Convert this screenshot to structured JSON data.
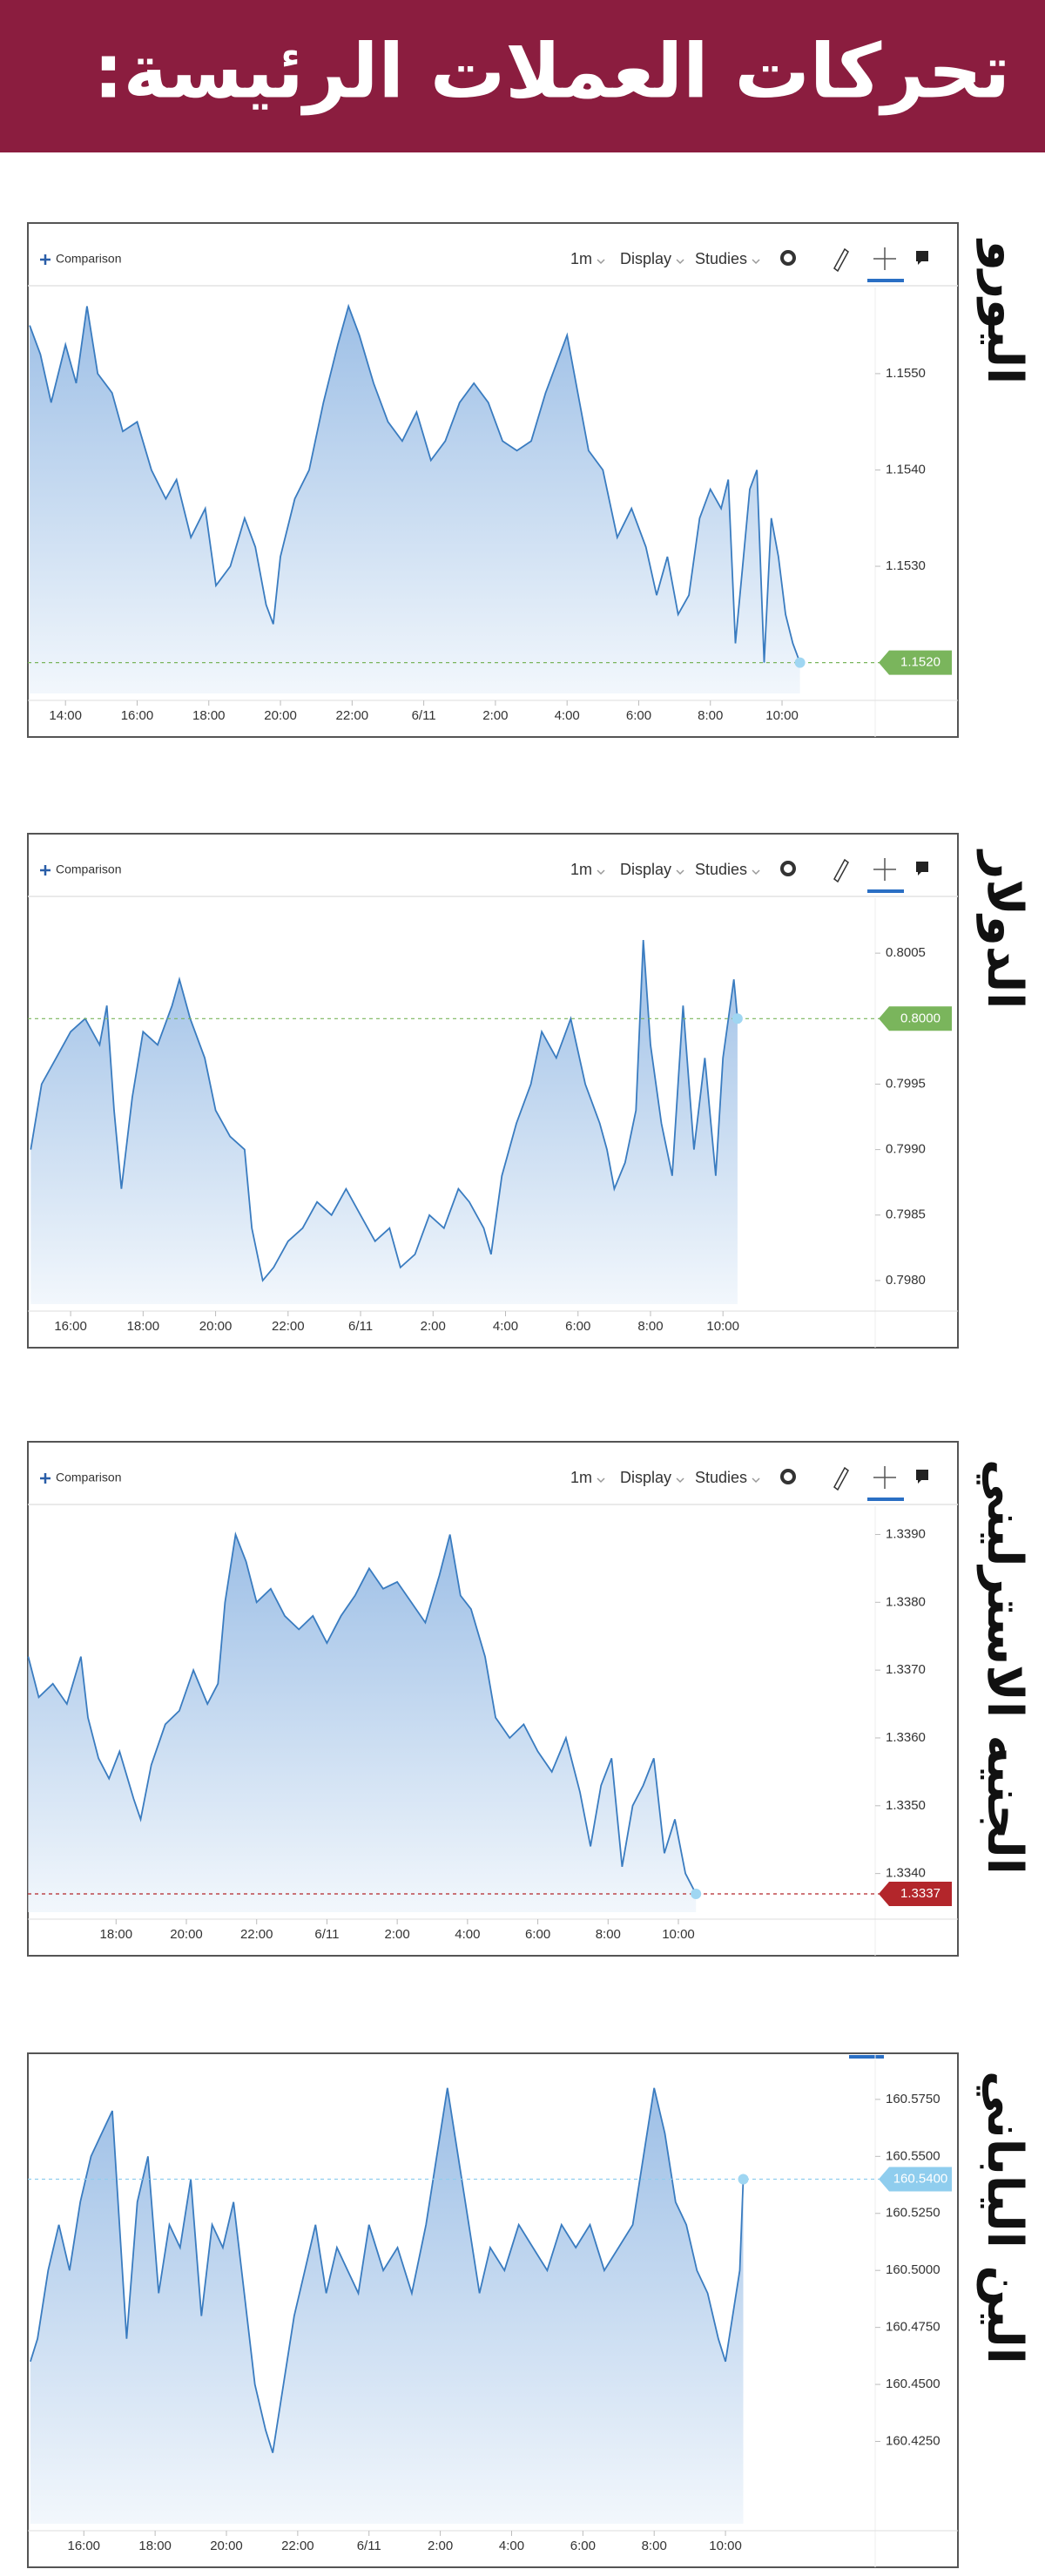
{
  "header": {
    "title": "تحركات العملات الرئيسة:"
  },
  "chart_data": [
    {
      "type": "area",
      "title": "اليورو",
      "toolbar": [
        "Comparison",
        "1m",
        "Display",
        "Studies"
      ],
      "color": "#3a7cc0",
      "tag_color": "#7ab55c",
      "x": [
        13.0,
        13.3,
        13.6,
        14.0,
        14.3,
        14.6,
        14.9,
        15.3,
        15.6,
        16.0,
        16.4,
        16.8,
        17.1,
        17.5,
        17.9,
        18.2,
        18.6,
        19.0,
        19.3,
        19.6,
        19.8,
        20.0,
        20.4,
        20.8,
        21.2,
        21.6,
        21.9,
        22.2,
        22.6,
        23.0,
        23.4,
        23.8,
        24.2,
        24.6,
        25.0,
        25.4,
        25.8,
        26.2,
        26.6,
        27.0,
        27.4,
        27.8,
        28.0,
        28.3,
        28.6,
        29.0,
        29.4,
        29.8,
        30.2,
        30.5,
        30.8,
        31.1,
        31.4,
        31.7,
        32.0,
        32.3,
        32.5,
        32.7,
        32.9,
        33.1,
        33.3,
        33.5,
        33.7,
        33.9,
        34.1,
        34.3,
        34.5
      ],
      "values": [
        1.1555,
        1.1552,
        1.1547,
        1.1553,
        1.1549,
        1.1557,
        1.155,
        1.1548,
        1.1544,
        1.1545,
        1.154,
        1.1537,
        1.1539,
        1.1533,
        1.1536,
        1.1528,
        1.153,
        1.1535,
        1.1532,
        1.1526,
        1.1524,
        1.1531,
        1.1537,
        1.154,
        1.1547,
        1.1553,
        1.1557,
        1.1554,
        1.1549,
        1.1545,
        1.1543,
        1.1546,
        1.1541,
        1.1543,
        1.1547,
        1.1549,
        1.1547,
        1.1543,
        1.1542,
        1.1543,
        1.1548,
        1.1552,
        1.1554,
        1.1548,
        1.1542,
        1.154,
        1.1533,
        1.1536,
        1.1532,
        1.1527,
        1.1531,
        1.1525,
        1.1527,
        1.1535,
        1.1538,
        1.1536,
        1.1539,
        1.1522,
        1.153,
        1.1538,
        1.154,
        1.152,
        1.1535,
        1.1531,
        1.1525,
        1.1522,
        1.152
      ],
      "last_value": {
        "value": 1.152,
        "label": "1.1520"
      },
      "xlim": [
        12.95,
        36.6
      ],
      "ylim": [
        1.15168,
        1.15584
      ],
      "xticks": [
        {
          "value": 14,
          "label": "14:00"
        },
        {
          "value": 16,
          "label": "16:00"
        },
        {
          "value": 18,
          "label": "18:00"
        },
        {
          "value": 20,
          "label": "20:00"
        },
        {
          "value": 22,
          "label": "22:00"
        },
        {
          "value": 24,
          "label": "6/11"
        },
        {
          "value": 26,
          "label": "2:00"
        },
        {
          "value": 28,
          "label": "4:00"
        },
        {
          "value": 30,
          "label": "6:00"
        },
        {
          "value": 32,
          "label": "8:00"
        },
        {
          "value": 34,
          "label": "10:00"
        }
      ],
      "yticks": [
        {
          "value": 1.155,
          "label": "1.1550"
        },
        {
          "value": 1.154,
          "label": "1.1540"
        },
        {
          "value": 1.153,
          "label": "1.1530"
        }
      ]
    },
    {
      "type": "area",
      "title": "الدولار",
      "toolbar": [
        "Comparison",
        "1m",
        "Display",
        "Studies"
      ],
      "color": "#3a7cc0",
      "tag_color": "#7ab55c",
      "x": [
        14.9,
        15.2,
        15.6,
        16.0,
        16.4,
        16.8,
        17.0,
        17.2,
        17.4,
        17.7,
        18.0,
        18.4,
        18.8,
        19.0,
        19.3,
        19.7,
        20.0,
        20.4,
        20.8,
        21.0,
        21.3,
        21.6,
        22.0,
        22.4,
        22.8,
        23.2,
        23.6,
        24.0,
        24.4,
        24.8,
        25.1,
        25.5,
        25.9,
        26.3,
        26.7,
        27.0,
        27.4,
        27.6,
        27.9,
        28.3,
        28.7,
        29.0,
        29.4,
        29.8,
        30.2,
        30.6,
        30.8,
        31.0,
        31.3,
        31.6,
        31.8,
        32.0,
        32.3,
        32.6,
        32.9,
        33.2,
        33.5,
        33.8,
        34.0,
        34.3,
        34.4
      ],
      "values": [
        0.799,
        0.7995,
        0.7997,
        0.7999,
        0.8,
        0.7998,
        0.8001,
        0.7993,
        0.7987,
        0.7994,
        0.7999,
        0.7998,
        0.8001,
        0.8003,
        0.8,
        0.7997,
        0.7993,
        0.7991,
        0.799,
        0.7984,
        0.798,
        0.7981,
        0.7983,
        0.7984,
        0.7986,
        0.7985,
        0.7987,
        0.7985,
        0.7983,
        0.7984,
        0.7981,
        0.7982,
        0.7985,
        0.7984,
        0.7987,
        0.7986,
        0.7984,
        0.7982,
        0.7988,
        0.7992,
        0.7995,
        0.7999,
        0.7997,
        0.8,
        0.7995,
        0.7992,
        0.799,
        0.7987,
        0.7989,
        0.7993,
        0.8006,
        0.7998,
        0.7992,
        0.7988,
        0.8001,
        0.799,
        0.7997,
        0.7988,
        0.7997,
        0.8003,
        0.8
      ],
      "last_value": {
        "value": 0.8,
        "label": "0.8000"
      },
      "xlim": [
        14.82,
        38.2
      ],
      "ylim": [
        0.79782,
        0.80088
      ],
      "xticks": [
        {
          "value": 16,
          "label": "16:00"
        },
        {
          "value": 18,
          "label": "18:00"
        },
        {
          "value": 20,
          "label": "20:00"
        },
        {
          "value": 22,
          "label": "22:00"
        },
        {
          "value": 24,
          "label": "6/11"
        },
        {
          "value": 26,
          "label": "2:00"
        },
        {
          "value": 28,
          "label": "4:00"
        },
        {
          "value": 30,
          "label": "6:00"
        },
        {
          "value": 32,
          "label": "8:00"
        },
        {
          "value": 34,
          "label": "10:00"
        }
      ],
      "yticks": [
        {
          "value": 0.8005,
          "label": "0.8005"
        },
        {
          "value": 0.7995,
          "label": "0.7995"
        },
        {
          "value": 0.799,
          "label": "0.7990"
        },
        {
          "value": 0.7985,
          "label": "0.7985"
        },
        {
          "value": 0.798,
          "label": "0.7980"
        }
      ]
    },
    {
      "type": "area",
      "title": "الجنيه الاسترليني",
      "toolbar": [
        "Comparison",
        "1m",
        "Display",
        "Studies"
      ],
      "color": "#3a7cc0",
      "tag_color": "#b3262b",
      "x": [
        15.5,
        15.8,
        16.2,
        16.6,
        17.0,
        17.2,
        17.5,
        17.8,
        18.1,
        18.5,
        18.7,
        19.0,
        19.4,
        19.8,
        20.2,
        20.6,
        20.9,
        21.1,
        21.4,
        21.7,
        22.0,
        22.4,
        22.8,
        23.2,
        23.6,
        24.0,
        24.4,
        24.8,
        25.2,
        25.6,
        26.0,
        26.4,
        26.8,
        27.2,
        27.5,
        27.8,
        28.1,
        28.5,
        28.8,
        29.2,
        29.6,
        30.0,
        30.4,
        30.8,
        31.2,
        31.5,
        31.8,
        32.1,
        32.4,
        32.7,
        33.0,
        33.3,
        33.6,
        33.9,
        34.2,
        34.5
      ],
      "values": [
        1.3372,
        1.3366,
        1.3368,
        1.3365,
        1.3372,
        1.3363,
        1.3357,
        1.3354,
        1.3358,
        1.3351,
        1.3348,
        1.3356,
        1.3362,
        1.3364,
        1.337,
        1.3365,
        1.3368,
        1.338,
        1.339,
        1.3386,
        1.338,
        1.3382,
        1.3378,
        1.3376,
        1.3378,
        1.3374,
        1.3378,
        1.3381,
        1.3385,
        1.3382,
        1.3383,
        1.338,
        1.3377,
        1.3384,
        1.339,
        1.3381,
        1.3379,
        1.3372,
        1.3363,
        1.336,
        1.3362,
        1.3358,
        1.3355,
        1.336,
        1.3352,
        1.3344,
        1.3353,
        1.3357,
        1.3341,
        1.335,
        1.3353,
        1.3357,
        1.3343,
        1.3348,
        1.334,
        1.3337
      ],
      "last_value": {
        "value": 1.3337,
        "label": "1.3337"
      },
      "xlim": [
        15.49,
        39.6
      ],
      "ylim": [
        1.33343,
        1.33934
      ],
      "xticks": [
        {
          "value": 18,
          "label": "18:00"
        },
        {
          "value": 20,
          "label": "20:00"
        },
        {
          "value": 22,
          "label": "22:00"
        },
        {
          "value": 24,
          "label": "6/11"
        },
        {
          "value": 26,
          "label": "2:00"
        },
        {
          "value": 28,
          "label": "4:00"
        },
        {
          "value": 30,
          "label": "6:00"
        },
        {
          "value": 32,
          "label": "8:00"
        },
        {
          "value": 34,
          "label": "10:00"
        }
      ],
      "yticks": [
        {
          "value": 1.339,
          "label": "1.3390"
        },
        {
          "value": 1.338,
          "label": "1.3380"
        },
        {
          "value": 1.337,
          "label": "1.3370"
        },
        {
          "value": 1.336,
          "label": "1.3360"
        },
        {
          "value": 1.335,
          "label": "1.3350"
        },
        {
          "value": 1.334,
          "label": "1.3340"
        }
      ]
    },
    {
      "type": "area",
      "title": "الين الياباني",
      "color": "#3a7cc0",
      "tag_color": "#8fcdee",
      "x": [
        14.5,
        14.7,
        15.0,
        15.3,
        15.6,
        15.9,
        16.2,
        16.5,
        16.8,
        17.0,
        17.2,
        17.5,
        17.8,
        18.1,
        18.4,
        18.7,
        19.0,
        19.3,
        19.6,
        19.9,
        20.2,
        20.5,
        20.8,
        21.1,
        21.3,
        21.6,
        21.9,
        22.2,
        22.5,
        22.8,
        23.1,
        23.4,
        23.7,
        24.0,
        24.4,
        24.8,
        25.2,
        25.6,
        25.9,
        26.2,
        26.5,
        26.8,
        27.1,
        27.4,
        27.8,
        28.2,
        28.6,
        29.0,
        29.4,
        29.8,
        30.2,
        30.6,
        31.0,
        31.4,
        31.7,
        32.0,
        32.3,
        32.6,
        32.9,
        33.2,
        33.5,
        33.8,
        34.0,
        34.2,
        34.4,
        34.5
      ],
      "values": [
        160.46,
        160.47,
        160.5,
        160.52,
        160.5,
        160.53,
        160.55,
        160.56,
        160.57,
        160.52,
        160.47,
        160.53,
        160.55,
        160.49,
        160.52,
        160.51,
        160.54,
        160.48,
        160.52,
        160.51,
        160.53,
        160.49,
        160.45,
        160.43,
        160.42,
        160.45,
        160.48,
        160.5,
        160.52,
        160.49,
        160.51,
        160.5,
        160.49,
        160.52,
        160.5,
        160.51,
        160.49,
        160.52,
        160.55,
        160.58,
        160.55,
        160.52,
        160.49,
        160.51,
        160.5,
        160.52,
        160.51,
        160.5,
        160.52,
        160.51,
        160.52,
        160.5,
        160.51,
        160.52,
        160.55,
        160.58,
        160.56,
        160.53,
        160.52,
        160.5,
        160.49,
        160.47,
        160.46,
        160.48,
        160.5,
        160.54
      ],
      "last_value": {
        "value": 160.54,
        "label": "160.5400"
      },
      "xlim": [
        14.43,
        38.2
      ],
      "ylim": [
        160.3889,
        160.5868
      ],
      "xticks": [
        {
          "value": 16,
          "label": "16:00"
        },
        {
          "value": 18,
          "label": "18:00"
        },
        {
          "value": 20,
          "label": "20:00"
        },
        {
          "value": 22,
          "label": "22:00"
        },
        {
          "value": 24,
          "label": "6/11"
        },
        {
          "value": 26,
          "label": "2:00"
        },
        {
          "value": 28,
          "label": "4:00"
        },
        {
          "value": 30,
          "label": "6:00"
        },
        {
          "value": 32,
          "label": "8:00"
        },
        {
          "value": 34,
          "label": "10:00"
        }
      ],
      "yticks": [
        {
          "value": 160.575,
          "label": "160.5750"
        },
        {
          "value": 160.55,
          "label": "160.5500"
        },
        {
          "value": 160.525,
          "label": "160.5250"
        },
        {
          "value": 160.5,
          "label": "160.5000"
        },
        {
          "value": 160.475,
          "label": "160.4750"
        },
        {
          "value": 160.45,
          "label": "160.4500"
        },
        {
          "value": 160.425,
          "label": "160.4250"
        }
      ]
    }
  ]
}
